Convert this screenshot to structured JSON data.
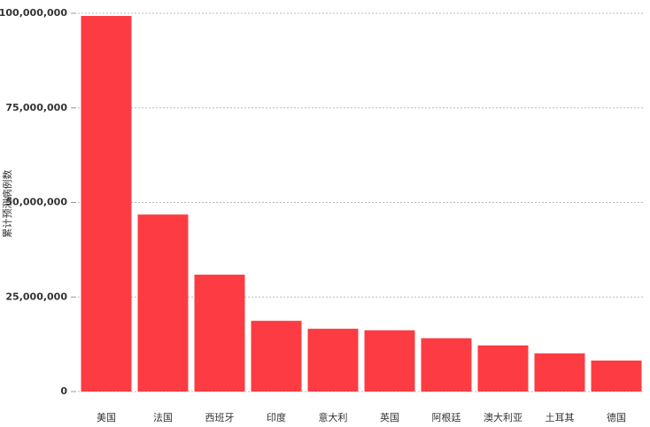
{
  "chart_data": {
    "type": "bar",
    "y_label": "累计预测病例数",
    "categories": [
      "美国",
      "法国",
      "西班牙",
      "印度",
      "意大利",
      "英国",
      "阿根廷",
      "澳大利亚",
      "土耳其",
      "德国"
    ],
    "values": [
      99300000,
      46800000,
      30900000,
      18700000,
      16600000,
      16200000,
      14100000,
      12200000,
      10100000,
      8200000
    ],
    "color": "#fc3c42",
    "ylim": [
      0,
      100000000
    ],
    "yticks": [
      0,
      {
        "value": 25000000,
        "label": "25,000,000"
      },
      {
        "value": 50000000,
        "label": "50,000,000"
      },
      {
        "value": 75000000,
        "label": "75,000,000"
      },
      {
        "value": 100000000,
        "label": "100,000,000"
      }
    ],
    "grid": true
  }
}
